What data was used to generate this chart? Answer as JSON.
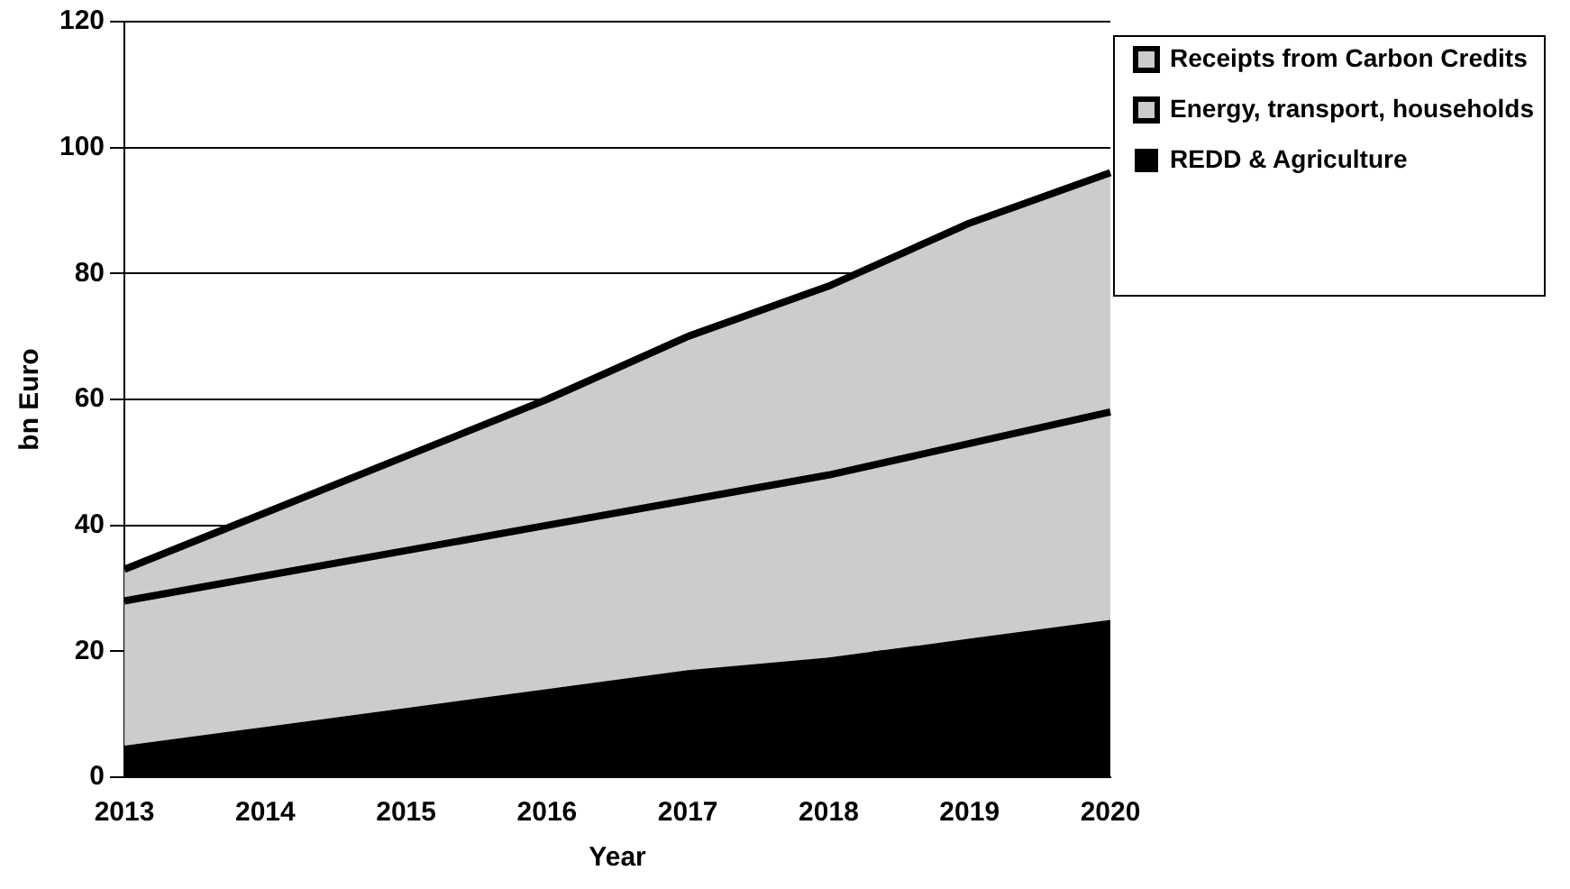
{
  "chart_data": {
    "type": "area",
    "stacked": true,
    "xlabel": "Year",
    "ylabel": "bn Euro",
    "categories": [
      "2013",
      "2014",
      "2015",
      "2016",
      "2017",
      "2018",
      "2019",
      "2020"
    ],
    "series": [
      {
        "name": "REDD & Agriculture",
        "color": "#000000",
        "values": [
          5,
          8,
          11,
          14,
          17,
          19,
          22,
          25
        ]
      },
      {
        "name": "Energy, transport, households",
        "color": "#cccccc",
        "values": [
          23,
          24,
          25,
          26,
          27,
          29,
          31,
          33
        ]
      },
      {
        "name": "Receipts from Carbon Credits",
        "color": "#cccccc",
        "values": [
          5,
          10,
          15,
          20,
          26,
          30,
          35,
          38
        ]
      }
    ],
    "ylim": [
      0,
      120
    ],
    "yticks": [
      0,
      20,
      40,
      60,
      80,
      100,
      120
    ],
    "grid": "y",
    "legend": "right"
  }
}
